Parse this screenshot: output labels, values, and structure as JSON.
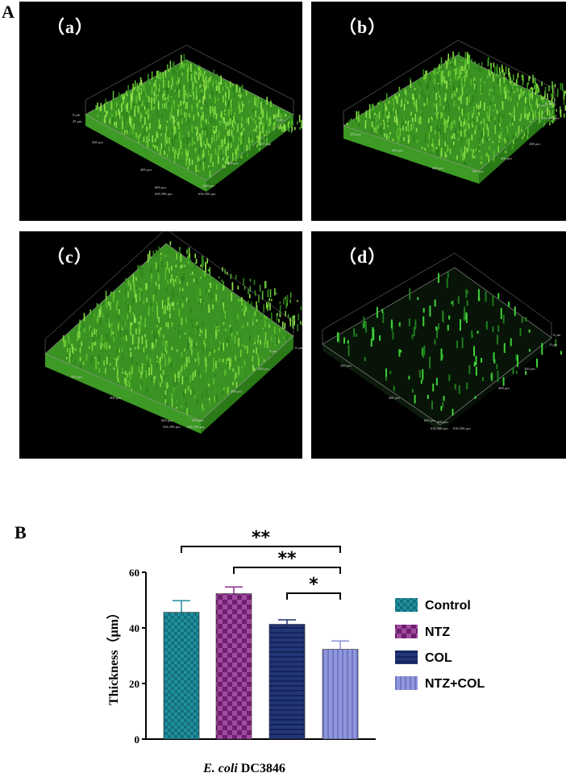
{
  "panel_a_letter": "A",
  "panel_b_letter": "B",
  "images": [
    {
      "label": "（a）",
      "density": "dense",
      "scale_labels": [
        "0 μm",
        "45 μm",
        "200 μm",
        "400 μm",
        "600 μm",
        "0 μm",
        "200 μm",
        "400 μm",
        "600 μm",
        "636.396 μm",
        "636.396 μm"
      ]
    },
    {
      "label": "（b）",
      "density": "dense",
      "scale_labels": [
        "0 μm",
        "200 μm",
        "400 μm",
        "600 μm",
        "0 μm",
        "200 μm",
        "400 μm",
        "600 μm",
        "636.396 μm"
      ]
    },
    {
      "label": "（c）",
      "density": "dense",
      "scale_labels": [
        "0 μm",
        "200 μm",
        "400 μm",
        "600 μm",
        "0 μm",
        "200 μm",
        "400 μm",
        "600 μm",
        "636.396 μm",
        "636.396 μm"
      ]
    },
    {
      "label": "（d）",
      "density": "sparse",
      "scale_labels": [
        "0 μm",
        "200 μm",
        "400 μm",
        "600 μm",
        "0 μm",
        "200 μm",
        "400 μm",
        "600 μm",
        "636.396 μm",
        "636.396 μm"
      ]
    }
  ],
  "chart_data": {
    "type": "bar",
    "ylabel": "Thickness（μm）",
    "xlabel": "E. coli DC3846",
    "xlabel_italic": "E. coli",
    "xlabel_rest": " DC3846",
    "ylim": [
      0,
      60
    ],
    "yticks": [
      "0",
      "20",
      "40",
      "60"
    ],
    "categories": [
      "Control",
      "NTZ",
      "COL",
      "NTZ+COL"
    ],
    "values": [
      45.6,
      52.3,
      41.3,
      32.3
    ],
    "errors": [
      4.2,
      2.4,
      1.6,
      3.0
    ],
    "colors": [
      "#1f8f9e",
      "#8e2d8e",
      "#1e2f6e",
      "#8a90d8"
    ],
    "legend": [
      "Control",
      "NTZ",
      "COL",
      "NTZ+COL"
    ],
    "legend_position": "right",
    "significance": [
      {
        "from": 0,
        "to": 3,
        "label": "**"
      },
      {
        "from": 1,
        "to": 3,
        "label": "**"
      },
      {
        "from": 2,
        "to": 3,
        "label": "*"
      }
    ]
  }
}
